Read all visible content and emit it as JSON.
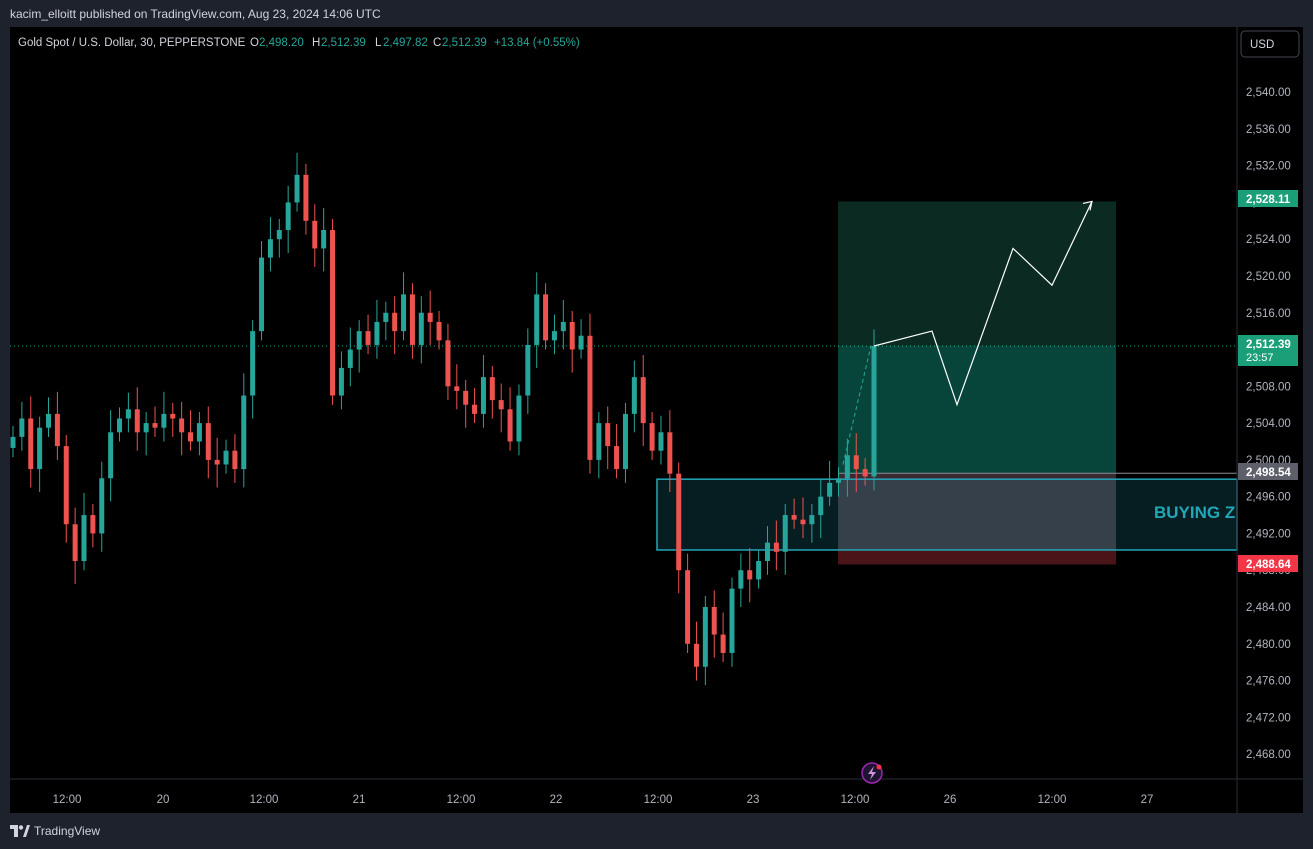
{
  "header": {
    "publisher_line": "kacim_elloitt published on TradingView.com, Aug 23, 2024 14:06 UTC"
  },
  "legend": {
    "symbol": "Gold Spot / U.S. Dollar, 30, PEPPERSTONE",
    "o_label": "O",
    "o_value": "2,498.20",
    "h_label": "H",
    "h_value": "2,512.39",
    "l_label": "L",
    "l_value": "2,497.82",
    "c_label": "C",
    "c_value": "2,512.39",
    "change": "+13.84 (+0.55%)"
  },
  "currency_button": "USD",
  "footer": {
    "brand": "TradingView"
  },
  "annotations": {
    "zone_text": "BUYING Z"
  },
  "price_badges": {
    "target": "2,528.11",
    "current": "2,512.39",
    "countdown": "23:57",
    "entry": "2,498.54",
    "stop": "2,488.64"
  },
  "colors": {
    "up": "#26a69a",
    "down": "#ef5350",
    "background": "#000000",
    "zone_border": "#22a7b9",
    "zone_text": "#22a7b9",
    "target_badge": "#1a9f78",
    "stop_badge": "#f23645",
    "entry_badge": "#5d606b"
  },
  "icons": {
    "logo": "tradingview-logo-icon",
    "event": "lightning-event-icon"
  },
  "chart_data": {
    "type": "candlestick",
    "title": "Gold Spot / U.S. Dollar, 30, PEPPERSTONE",
    "interval": "30",
    "ylim": [
      2466.0,
      2543.0
    ],
    "y_ticks": [
      "2,540.00",
      "2,536.00",
      "2,532.00",
      "2,528.00",
      "2,524.00",
      "2,520.00",
      "2,516.00",
      "2,512.00",
      "2,508.00",
      "2,504.00",
      "2,500.00",
      "2,496.00",
      "2,492.00",
      "2,488.00",
      "2,484.00",
      "2,480.00",
      "2,476.00",
      "2,472.00",
      "2,468.00"
    ],
    "x_ticks": [
      "12:00",
      "20",
      "12:00",
      "21",
      "12:00",
      "22",
      "12:00",
      "23",
      "12:00",
      "26",
      "12:00",
      "27"
    ],
    "series_close": [
      2502.5,
      2504.5,
      2499.0,
      2503.5,
      2505.0,
      2501.5,
      2493.0,
      2489.0,
      2494.0,
      2492.0,
      2498.0,
      2503.0,
      2504.5,
      2505.5,
      2503.0,
      2504.0,
      2503.5,
      2505.0,
      2504.5,
      2503.0,
      2502.0,
      2504.0,
      2500.0,
      2499.5,
      2501.0,
      2499.0,
      2507.0,
      2514.0,
      2522.0,
      2524.0,
      2525.0,
      2528.0,
      2531.0,
      2526.0,
      2523.0,
      2525.0,
      2507.0,
      2510.0,
      2512.0,
      2514.0,
      2512.5,
      2515.0,
      2516.0,
      2514.0,
      2518.0,
      2512.5,
      2516.0,
      2515.0,
      2513.0,
      2508.0,
      2507.5,
      2506.0,
      2505.0,
      2509.0,
      2506.5,
      2505.5,
      2502.0,
      2507.0,
      2512.5,
      2518.0,
      2513.0,
      2514.0,
      2515.0,
      2512.0,
      2513.5,
      2500.0,
      2504.0,
      2501.5,
      2499.0,
      2505.0,
      2509.0,
      2504.0,
      2501.0,
      2503.0,
      2498.5,
      2488.0,
      2480.0,
      2477.5,
      2484.0,
      2481.0,
      2479.0,
      2486.0,
      2488.0,
      2487.0,
      2489.0,
      2491.0,
      2490.0,
      2494.0,
      2493.5,
      2493.0,
      2494.0,
      2496.0,
      2497.5,
      2498.0,
      2500.5,
      2499.0,
      2498.2,
      2512.39
    ]
  },
  "trade_plan": {
    "entry": 2498.54,
    "target": 2528.11,
    "stop": 2488.64,
    "current": 2512.39,
    "buying_zone": [
      2490.2,
      2497.9
    ],
    "projection_path": [
      [
        2512.39
      ],
      [
        2514.0
      ],
      [
        2506.0
      ],
      [
        2523.0
      ],
      [
        2519.0
      ],
      [
        2528.11
      ]
    ]
  }
}
